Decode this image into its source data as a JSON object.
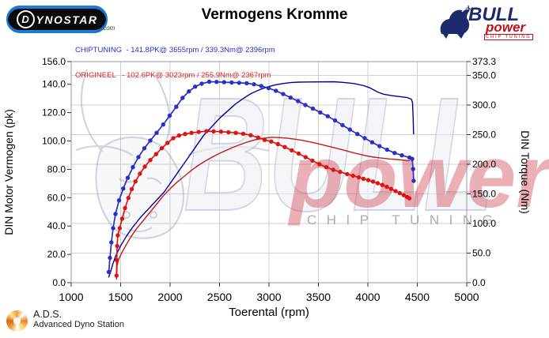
{
  "header": {
    "title": "Vermogens Kromme",
    "dynostar": {
      "d": "D",
      "rest": "YNOSTAR",
      "suffix": ".com"
    },
    "bullpower": {
      "bull": "BULL",
      "power": "power",
      "chip": "CHIP TUNING"
    }
  },
  "legend": {
    "chiptuning": {
      "text": "CHIPTUNING  - 141.8PK@ 3655rpm / 339.3Nm@ 2396rpm",
      "color": "#2233cc"
    },
    "origineel": {
      "text": "ORIGINEEL   - 102.6PK@ 3023rpm / 255.9Nm@ 2367rpm",
      "color": "#dd2222"
    }
  },
  "footer": {
    "title": "A.D.S.",
    "subtitle": "Advanced Dyno Station"
  },
  "watermark": {
    "word1": "BULL",
    "word2": "power",
    "word3": "CHIP TUNING"
  },
  "chart_data": {
    "type": "line",
    "title": "Vermogens Kromme",
    "xlabel": "Toerental (rpm)",
    "ylabel_left": "DIN Motor Vermogen (pk)",
    "ylabel_right": "DIN Torque (Nm)",
    "xlim": [
      1000,
      5000
    ],
    "x_ticks": [
      1000,
      1500,
      2000,
      2500,
      3000,
      3500,
      4000,
      4500,
      5000
    ],
    "ylim_left": [
      0,
      156
    ],
    "yticks_left": [
      0,
      20,
      40,
      60,
      80,
      100,
      120,
      140,
      156
    ],
    "ylim_right": [
      0,
      373.3
    ],
    "yticks_right": [
      0,
      50,
      100,
      150,
      200,
      250,
      300,
      350,
      373.3
    ],
    "grid": true,
    "colors": {
      "grid": "#d0d0d0",
      "border": "#999999",
      "tick": "#333333"
    },
    "series": [
      {
        "name": "chiptuning-vermogen-pk",
        "axis": "left",
        "color": "#000099",
        "markers": false,
        "width": 1.4,
        "peak": "141.8 PK @ 3655 rpm",
        "points": [
          [
            1380,
            4
          ],
          [
            1400,
            8
          ],
          [
            1420,
            13
          ],
          [
            1450,
            19
          ],
          [
            1500,
            26
          ],
          [
            1560,
            33
          ],
          [
            1620,
            39
          ],
          [
            1700,
            46
          ],
          [
            1780,
            52
          ],
          [
            1860,
            58
          ],
          [
            1940,
            64
          ],
          [
            2020,
            72
          ],
          [
            2100,
            80
          ],
          [
            2180,
            88
          ],
          [
            2260,
            96
          ],
          [
            2340,
            104
          ],
          [
            2420,
            110
          ],
          [
            2500,
            116
          ],
          [
            2580,
            121
          ],
          [
            2660,
            126
          ],
          [
            2740,
            130
          ],
          [
            2820,
            133.5
          ],
          [
            2900,
            136
          ],
          [
            2980,
            138
          ],
          [
            3060,
            139.5
          ],
          [
            3140,
            140.5
          ],
          [
            3220,
            141.2
          ],
          [
            3300,
            141.5
          ],
          [
            3400,
            141.6
          ],
          [
            3500,
            141.7
          ],
          [
            3655,
            141.8
          ],
          [
            3760,
            141.3
          ],
          [
            3860,
            140.5
          ],
          [
            3960,
            139
          ],
          [
            4020,
            137.5
          ],
          [
            4060,
            136
          ],
          [
            4100,
            134.5
          ],
          [
            4160,
            133
          ],
          [
            4240,
            132
          ],
          [
            4320,
            131.3
          ],
          [
            4400,
            130.6
          ],
          [
            4440,
            129.5
          ],
          [
            4452,
            127
          ],
          [
            4458,
            116
          ],
          [
            4462,
            105
          ]
        ]
      },
      {
        "name": "chiptuning-koppel-nm",
        "axis": "right",
        "color": "#2b2fc4",
        "markers": true,
        "width": 1.7,
        "peak": "339.3 Nm @ 2396 rpm",
        "points": [
          [
            1380,
            18
          ],
          [
            1392,
            42
          ],
          [
            1406,
            68
          ],
          [
            1424,
            92
          ],
          [
            1448,
            116
          ],
          [
            1484,
            139
          ],
          [
            1526,
            159
          ],
          [
            1572,
            177
          ],
          [
            1624,
            195
          ],
          [
            1680,
            212
          ],
          [
            1740,
            227
          ],
          [
            1800,
            240
          ],
          [
            1864,
            253
          ],
          [
            1930,
            267
          ],
          [
            1996,
            282
          ],
          [
            2062,
            297
          ],
          [
            2126,
            312
          ],
          [
            2190,
            323
          ],
          [
            2254,
            331
          ],
          [
            2320,
            336
          ],
          [
            2396,
            339.3
          ],
          [
            2470,
            339
          ],
          [
            2546,
            338.5
          ],
          [
            2622,
            338
          ],
          [
            2698,
            337.5
          ],
          [
            2774,
            336.8
          ],
          [
            2848,
            335
          ],
          [
            2922,
            332
          ],
          [
            2996,
            328.5
          ],
          [
            3070,
            324
          ],
          [
            3144,
            318.5
          ],
          [
            3218,
            312.5
          ],
          [
            3294,
            306.5
          ],
          [
            3368,
            300
          ],
          [
            3444,
            294
          ],
          [
            3518,
            287.5
          ],
          [
            3594,
            281
          ],
          [
            3668,
            274
          ],
          [
            3744,
            266
          ],
          [
            3818,
            258.5
          ],
          [
            3894,
            251
          ],
          [
            3968,
            244
          ],
          [
            4044,
            237
          ],
          [
            4118,
            230.5
          ],
          [
            4194,
            224.5
          ],
          [
            4270,
            219
          ],
          [
            4344,
            215
          ],
          [
            4420,
            211.5
          ],
          [
            4448,
            209
          ],
          [
            4458,
            192
          ],
          [
            4463,
            172
          ]
        ]
      },
      {
        "name": "origineel-vermogen-pk",
        "axis": "left",
        "color": "#c41a1a",
        "markers": false,
        "width": 1.4,
        "peak": "102.6 PK @ 3023 rpm",
        "points": [
          [
            1458,
            2.5
          ],
          [
            1464,
            12
          ],
          [
            1480,
            16.5
          ],
          [
            1510,
            21
          ],
          [
            1550,
            26
          ],
          [
            1600,
            32
          ],
          [
            1660,
            38
          ],
          [
            1730,
            44
          ],
          [
            1800,
            50
          ],
          [
            1870,
            56
          ],
          [
            1940,
            62
          ],
          [
            2010,
            67
          ],
          [
            2080,
            71.5
          ],
          [
            2150,
            75.5
          ],
          [
            2220,
            79.5
          ],
          [
            2290,
            83
          ],
          [
            2360,
            86
          ],
          [
            2430,
            88.8
          ],
          [
            2500,
            91.2
          ],
          [
            2570,
            93.5
          ],
          [
            2640,
            95.6
          ],
          [
            2710,
            97.5
          ],
          [
            2780,
            99.2
          ],
          [
            2850,
            100.7
          ],
          [
            2930,
            101.8
          ],
          [
            3023,
            102.6
          ],
          [
            3100,
            102.4
          ],
          [
            3180,
            102
          ],
          [
            3260,
            101.3
          ],
          [
            3340,
            100.4
          ],
          [
            3420,
            99.3
          ],
          [
            3500,
            98
          ],
          [
            3580,
            96.6
          ],
          [
            3660,
            95.2
          ],
          [
            3740,
            93.8
          ],
          [
            3820,
            92.3
          ],
          [
            3900,
            90.9
          ],
          [
            3980,
            89.6
          ],
          [
            4060,
            88.6
          ],
          [
            4140,
            87.9
          ],
          [
            4220,
            87.3
          ],
          [
            4300,
            86.9
          ],
          [
            4370,
            86.4
          ],
          [
            4420,
            86
          ]
        ]
      },
      {
        "name": "origineel-koppel-nm",
        "axis": "right",
        "color": "#dd1414",
        "markers": true,
        "width": 1.7,
        "peak": "255.9 Nm @ 2367 rpm",
        "points": [
          [
            1458,
            12
          ],
          [
            1461,
            38
          ],
          [
            1465,
            62
          ],
          [
            1471,
            80
          ],
          [
            1490,
            92
          ],
          [
            1515,
            108
          ],
          [
            1545,
            126
          ],
          [
            1578,
            143
          ],
          [
            1612,
            158
          ],
          [
            1650,
            171
          ],
          [
            1695,
            184
          ],
          [
            1745,
            196
          ],
          [
            1800,
            207
          ],
          [
            1858,
            217
          ],
          [
            1916,
            227
          ],
          [
            1974,
            236
          ],
          [
            2032,
            244
          ],
          [
            2090,
            248.5
          ],
          [
            2152,
            251
          ],
          [
            2216,
            253
          ],
          [
            2290,
            254.5
          ],
          [
            2367,
            255.9
          ],
          [
            2440,
            255.5
          ],
          [
            2515,
            255
          ],
          [
            2590,
            254
          ],
          [
            2665,
            253
          ],
          [
            2740,
            251.5
          ],
          [
            2815,
            249
          ],
          [
            2890,
            245
          ],
          [
            2956,
            241
          ],
          [
            3023,
            238.4
          ],
          [
            3090,
            234
          ],
          [
            3160,
            229
          ],
          [
            3230,
            223.5
          ],
          [
            3300,
            218
          ],
          [
            3370,
            212
          ],
          [
            3440,
            206
          ],
          [
            3510,
            200
          ],
          [
            3580,
            195
          ],
          [
            3650,
            190.5
          ],
          [
            3720,
            187
          ],
          [
            3790,
            183.5
          ],
          [
            3850,
            180.5
          ],
          [
            3908,
            177.8
          ],
          [
            3956,
            175.5
          ],
          [
            4004,
            173.2
          ],
          [
            4052,
            170.8
          ],
          [
            4100,
            168
          ],
          [
            4146,
            165
          ],
          [
            4192,
            161.8
          ],
          [
            4236,
            158.4
          ],
          [
            4280,
            154.8
          ],
          [
            4322,
            151.2
          ],
          [
            4362,
            147.8
          ],
          [
            4396,
            144.8
          ],
          [
            4420,
            142.5
          ]
        ]
      }
    ]
  }
}
